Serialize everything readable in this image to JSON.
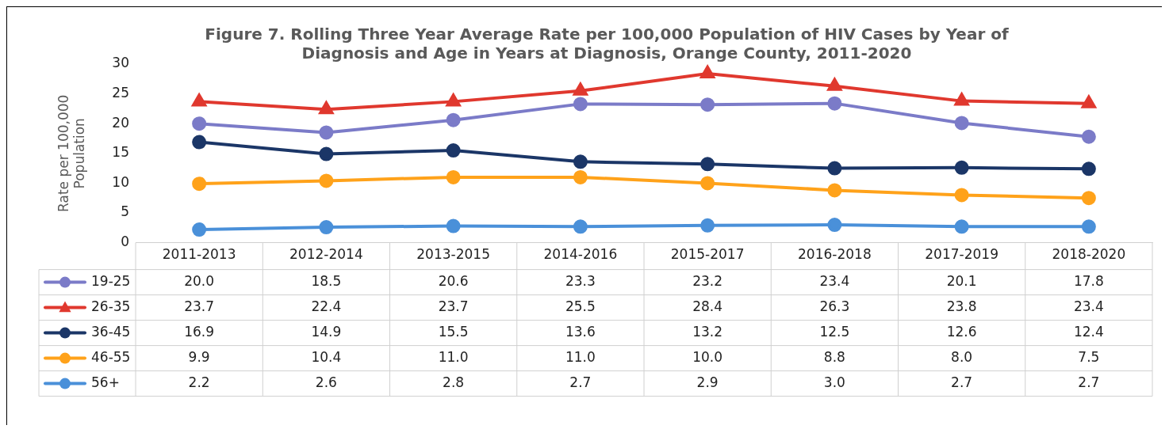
{
  "chart_data": {
    "type": "line",
    "title": "Figure 7. Rolling Three Year Average Rate per 100,000 Population of HIV Cases by Year of Diagnosis and Age in Years at Diagnosis, Orange County, 2011-2020",
    "ylabel": "Rate per 100,000 Population",
    "categories": [
      "2011-2013",
      "2012-2014",
      "2013-2015",
      "2014-2016",
      "2015-2017",
      "2016-2018",
      "2017-2019",
      "2018-2020"
    ],
    "series": [
      {
        "name": "19-25",
        "color": "#7b7bc8",
        "marker": "circle",
        "values": [
          20.0,
          18.5,
          20.6,
          23.3,
          23.2,
          23.4,
          20.1,
          17.8
        ],
        "value_labels": [
          "20.0",
          "18.5",
          "20.6",
          "23.3",
          "23.2",
          "23.4",
          "20.1",
          "17.8"
        ]
      },
      {
        "name": "26-35",
        "color": "#e0382e",
        "marker": "triangle",
        "values": [
          23.7,
          22.4,
          23.7,
          25.5,
          28.4,
          26.3,
          23.8,
          23.4
        ],
        "value_labels": [
          "23.7",
          "22.4",
          "23.7",
          "25.5",
          "28.4",
          "26.3",
          "23.8",
          "23.4"
        ]
      },
      {
        "name": "36-45",
        "color": "#1b3667",
        "marker": "circle",
        "values": [
          16.9,
          14.9,
          15.5,
          13.6,
          13.2,
          12.5,
          12.6,
          12.4
        ],
        "value_labels": [
          "16.9",
          "14.9",
          "15.5",
          "13.6",
          "13.2",
          "12.5",
          "12.6",
          "12.4"
        ]
      },
      {
        "name": "46-55",
        "color": "#ffa21a",
        "marker": "circle",
        "values": [
          9.9,
          10.4,
          11.0,
          11.0,
          10.0,
          8.8,
          8.0,
          7.5
        ],
        "value_labels": [
          "9.9",
          "10.4",
          "11.0",
          "11.0",
          "10.0",
          "8.8",
          "8.0",
          "7.5"
        ]
      },
      {
        "name": "56+",
        "color": "#4a90d9",
        "marker": "circle",
        "values": [
          2.2,
          2.6,
          2.8,
          2.7,
          2.9,
          3.0,
          2.7,
          2.7
        ],
        "value_labels": [
          "2.2",
          "2.6",
          "2.8",
          "2.7",
          "2.9",
          "3.0",
          "2.7",
          "2.7"
        ]
      }
    ],
    "ylim": [
      0,
      30
    ],
    "yticks": [
      0,
      5,
      10,
      15,
      20,
      25,
      30
    ],
    "grid": false,
    "legend": "bottom",
    "line_style": "solid"
  }
}
